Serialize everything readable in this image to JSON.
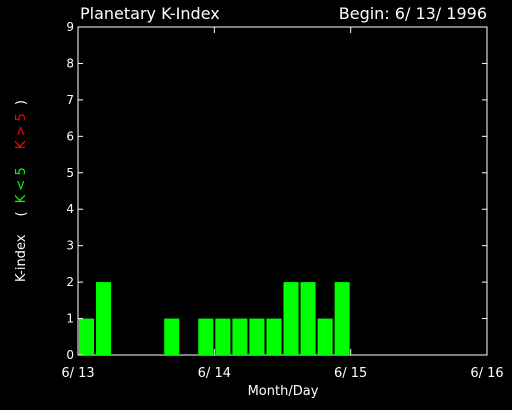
{
  "chart_data": {
    "type": "bar",
    "title": "Planetary K-Index",
    "begin_label": "Begin: 6/ 13/ 1996",
    "xlabel": "Month/Day",
    "ylabel": {
      "prefix": "K-index",
      "open": "(",
      "low": "K < 5",
      "high": "K > 5",
      "close": ")"
    },
    "ylim": [
      0,
      9
    ],
    "yticks": [
      0,
      1,
      2,
      3,
      4,
      5,
      6,
      7,
      8,
      9
    ],
    "xlim": [
      "6/13/1996 00:00",
      "6/16/1996 00:00"
    ],
    "interval_hours": 3,
    "xticks": [
      "6/ 13",
      "6/ 14",
      "6/ 15",
      "6/ 16"
    ],
    "grid": false,
    "values": [
      1,
      2,
      0,
      0,
      0,
      1,
      0,
      1,
      1,
      1,
      1,
      1,
      2,
      2,
      1,
      2,
      0,
      0,
      0,
      0,
      0,
      0,
      0,
      0
    ],
    "colors": {
      "background": "#000000",
      "axes": "#ffffff",
      "bar_low": "#00ff00",
      "bar_high": "#ff0000",
      "label_low": "#00ff00",
      "label_high": "#ff0000"
    }
  }
}
